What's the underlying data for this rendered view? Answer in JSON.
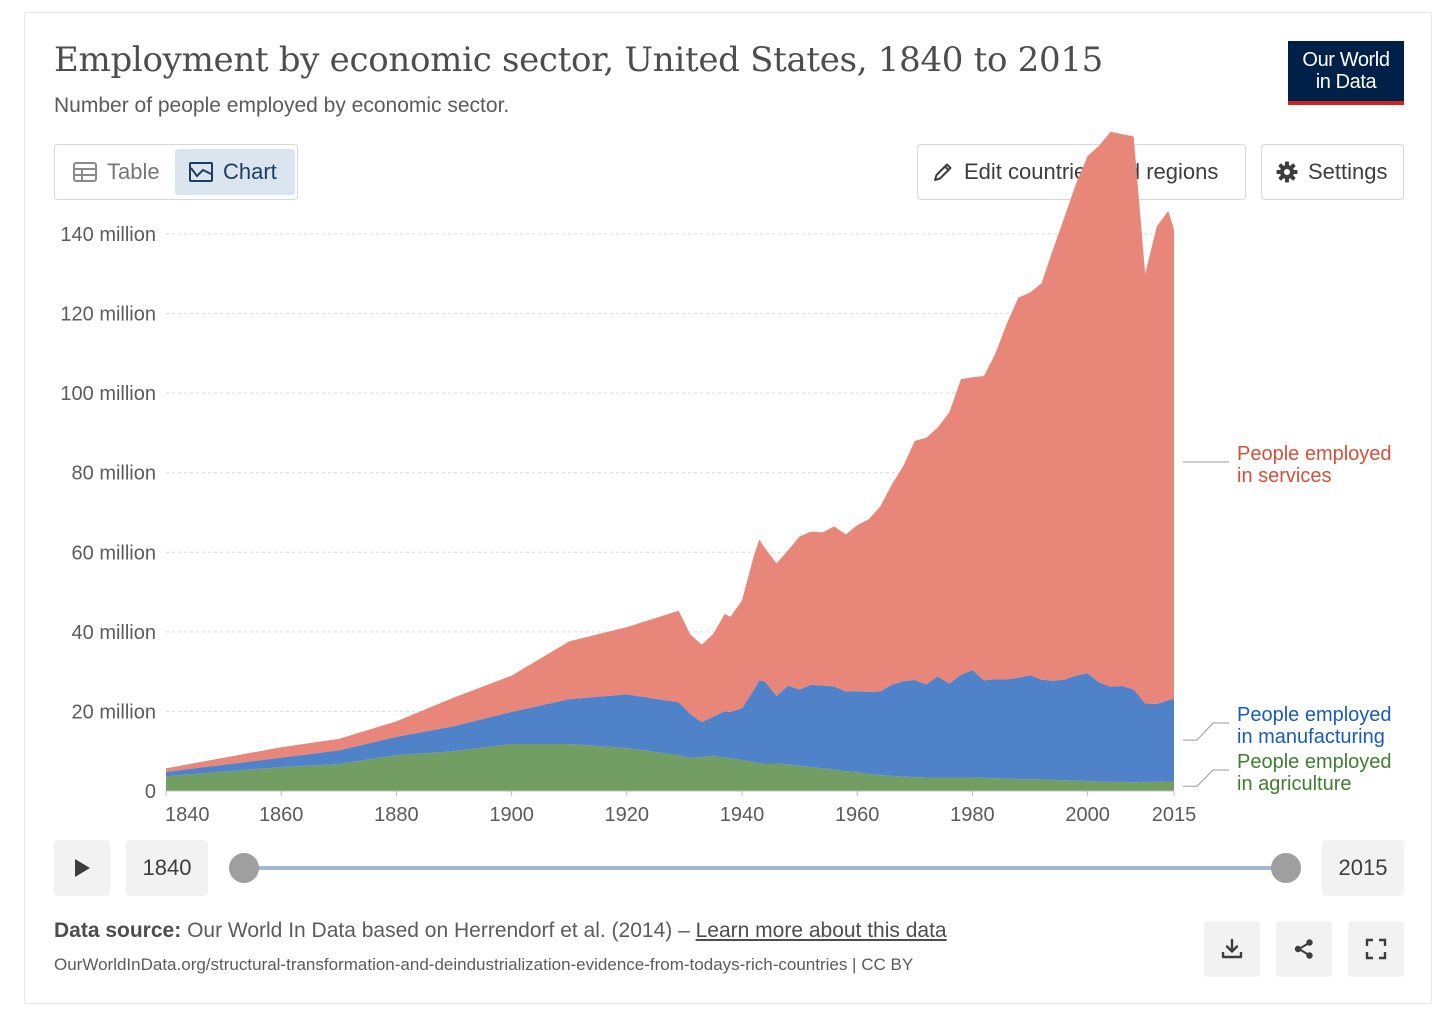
{
  "header": {
    "title": "Employment by economic sector, United States, 1840 to 2015",
    "subtitle": "Number of people employed by economic sector.",
    "logo_line1": "Our World",
    "logo_line2": "in Data"
  },
  "tabs": [
    {
      "label": "Table",
      "icon": "table-icon",
      "active": false
    },
    {
      "label": "Chart",
      "icon": "line-chart-icon",
      "active": true
    }
  ],
  "toolbar": {
    "edit_label": "Edit countries and regions",
    "settings_label": "Settings"
  },
  "timeline": {
    "start": "1840",
    "end": "2015"
  },
  "footer": {
    "source_label": "Data source:",
    "source_text": "Our World In Data based on Herrendorf et al. (2014) – ",
    "learn_more": "Learn more about this data",
    "url": "OurWorldInData.org/structural-transformation-and-deindustrialization-evidence-from-todays-rich-countries | CC BY"
  },
  "colors": {
    "services": "#e8867a",
    "manufacturing": "#4f82c9",
    "agriculture": "#739e63",
    "services_label": "#d2513a",
    "manufacturing_label": "#1a5bb5",
    "agriculture_label": "#3f7d2f"
  },
  "chart_data": {
    "type": "area",
    "stacked": true,
    "title": "Employment by economic sector, United States, 1840 to 2015",
    "ylim": [
      0,
      140000000
    ],
    "xlim": [
      1840,
      2015
    ],
    "y_ticks": [
      {
        "value": 0,
        "label": "0"
      },
      {
        "value": 20000000,
        "label": "20 million"
      },
      {
        "value": 40000000,
        "label": "40 million"
      },
      {
        "value": 60000000,
        "label": "60 million"
      },
      {
        "value": 80000000,
        "label": "80 million"
      },
      {
        "value": 100000000,
        "label": "100 million"
      },
      {
        "value": 120000000,
        "label": "120 million"
      },
      {
        "value": 140000000,
        "label": "140 million"
      }
    ],
    "x_ticks": [
      {
        "value": 1840,
        "label": "1840"
      },
      {
        "value": 1860,
        "label": "1860"
      },
      {
        "value": 1880,
        "label": "1880"
      },
      {
        "value": 1900,
        "label": "1900"
      },
      {
        "value": 1920,
        "label": "1920"
      },
      {
        "value": 1940,
        "label": "1940"
      },
      {
        "value": 1960,
        "label": "1960"
      },
      {
        "value": 1980,
        "label": "1980"
      },
      {
        "value": 2000,
        "label": "2000"
      },
      {
        "value": 2015,
        "label": "2015"
      }
    ],
    "grid": true,
    "legend": "right, inline labels",
    "x": [
      1840,
      1860,
      1870,
      1880,
      1890,
      1900,
      1910,
      1920,
      1929,
      1931,
      1933,
      1935,
      1937,
      1938,
      1940,
      1942,
      1943,
      1944,
      1946,
      1948,
      1950,
      1952,
      1954,
      1956,
      1958,
      1960,
      1962,
      1964,
      1966,
      1968,
      1970,
      1972,
      1974,
      1976,
      1978,
      1980,
      1982,
      1984,
      1986,
      1988,
      1990,
      1992,
      1994,
      1996,
      1998,
      2000,
      2002,
      2004,
      2006,
      2008,
      2010,
      2012,
      2014,
      2015
    ],
    "series": [
      {
        "name": "People employed in agriculture",
        "key": "agriculture",
        "label_lines": [
          "People employed",
          "in agriculture"
        ],
        "values": [
          3.7,
          6.0,
          6.8,
          9.0,
          10.0,
          11.8,
          11.8,
          10.8,
          9.0,
          8.4,
          8.5,
          8.9,
          8.4,
          8.2,
          7.8,
          7.3,
          7.0,
          6.9,
          6.9,
          6.7,
          6.3,
          6.0,
          5.7,
          5.4,
          5.0,
          4.8,
          4.3,
          4.0,
          3.8,
          3.6,
          3.5,
          3.4,
          3.4,
          3.4,
          3.4,
          3.4,
          3.3,
          3.2,
          3.1,
          3.0,
          3.0,
          2.9,
          2.8,
          2.7,
          2.6,
          2.5,
          2.4,
          2.3,
          2.3,
          2.2,
          2.3,
          2.3,
          2.4,
          2.4
        ]
      },
      {
        "name": "People employed in manufacturing",
        "key": "manufacturing",
        "label_lines": [
          "People employed",
          "in manufacturing"
        ],
        "values": [
          1.1,
          2.4,
          3.4,
          4.6,
          6.3,
          8.1,
          11.3,
          13.5,
          13.3,
          11.0,
          8.8,
          9.8,
          11.6,
          11.7,
          13.0,
          18.0,
          20.8,
          20.6,
          17.0,
          19.8,
          19.2,
          20.7,
          20.8,
          20.9,
          20.0,
          20.3,
          20.6,
          21.0,
          22.9,
          24.0,
          24.4,
          23.4,
          25.4,
          23.6,
          25.8,
          27.0,
          24.5,
          24.9,
          25.0,
          25.5,
          26.1,
          25.1,
          24.9,
          25.3,
          26.4,
          27.1,
          24.9,
          23.9,
          24.1,
          23.3,
          19.7,
          19.6,
          20.4,
          20.8
        ]
      },
      {
        "name": "People employed in services",
        "key": "services",
        "label_lines": [
          "People employed",
          "in services"
        ],
        "values": [
          0.9,
          2.6,
          2.9,
          3.9,
          7.2,
          9.1,
          14.5,
          16.9,
          23.0,
          20.0,
          19.5,
          20.8,
          24.5,
          23.9,
          27.1,
          33.5,
          35.4,
          33.5,
          33.3,
          34.0,
          38.5,
          38.5,
          38.5,
          40.2,
          39.5,
          41.7,
          43.4,
          46.5,
          50.3,
          54.1,
          60.1,
          62.0,
          62.6,
          68.2,
          74.3,
          73.6,
          76.5,
          81.9,
          89.5,
          95.5,
          96.2,
          99.6,
          108.5,
          116.3,
          123.7,
          130.0,
          134.9,
          139.5,
          138.7,
          139.0,
          108.0,
          120.0,
          123.0,
          118.0
        ]
      }
    ]
  }
}
